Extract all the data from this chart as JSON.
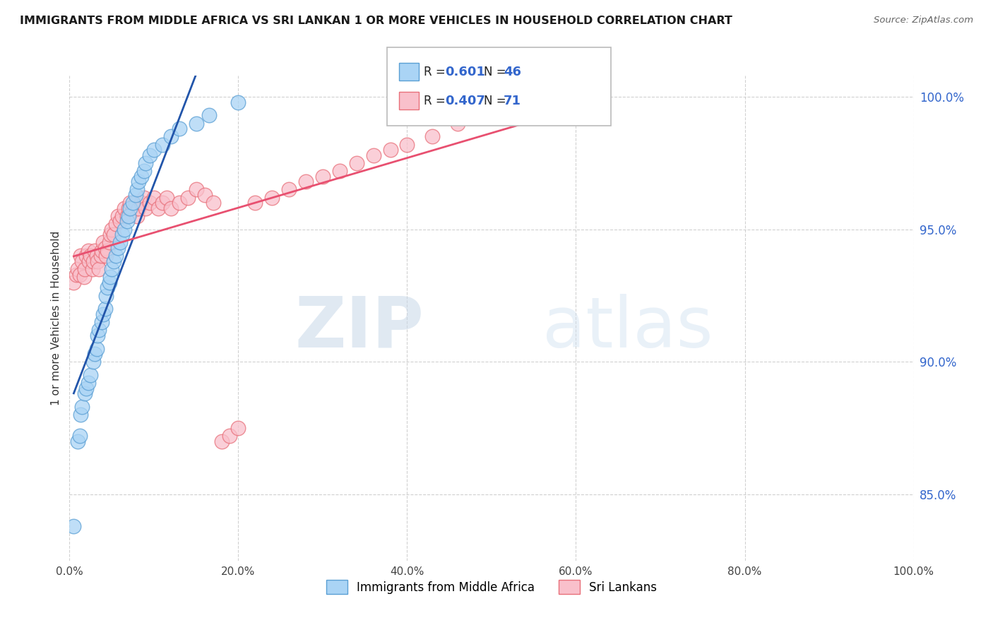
{
  "title": "IMMIGRANTS FROM MIDDLE AFRICA VS SRI LANKAN 1 OR MORE VEHICLES IN HOUSEHOLD CORRELATION CHART",
  "source": "Source: ZipAtlas.com",
  "ylabel": "1 or more Vehicles in Household",
  "watermark_zip": "ZIP",
  "watermark_atlas": "atlas",
  "xlim": [
    0.0,
    1.0
  ],
  "ylim": [
    0.825,
    1.008
  ],
  "yticks": [
    0.85,
    0.9,
    0.95,
    1.0
  ],
  "ytick_labels": [
    "85.0%",
    "90.0%",
    "95.0%",
    "100.0%"
  ],
  "xticks": [
    0.0,
    0.2,
    0.4,
    0.6,
    0.8,
    1.0
  ],
  "xtick_labels": [
    "0.0%",
    "20.0%",
    "40.0%",
    "60.0%",
    "80.0%",
    "100.0%"
  ],
  "blue_R": 0.601,
  "blue_N": 46,
  "pink_R": 0.407,
  "pink_N": 71,
  "blue_color": "#aad4f5",
  "pink_color": "#f9c0cb",
  "blue_edge_color": "#5a9fd4",
  "pink_edge_color": "#e8707a",
  "blue_line_color": "#2255aa",
  "pink_line_color": "#e85070",
  "legend_label_blue": "Immigrants from Middle Africa",
  "legend_label_pink": "Sri Lankans",
  "blue_scatter_x": [
    0.005,
    0.01,
    0.012,
    0.013,
    0.015,
    0.018,
    0.02,
    0.022,
    0.025,
    0.028,
    0.03,
    0.032,
    0.033,
    0.035,
    0.038,
    0.04,
    0.042,
    0.043,
    0.045,
    0.047,
    0.048,
    0.05,
    0.052,
    0.055,
    0.057,
    0.06,
    0.062,
    0.065,
    0.068,
    0.07,
    0.072,
    0.075,
    0.078,
    0.08,
    0.082,
    0.085,
    0.088,
    0.09,
    0.095,
    0.1,
    0.11,
    0.12,
    0.13,
    0.15,
    0.165,
    0.2
  ],
  "blue_scatter_y": [
    0.838,
    0.87,
    0.872,
    0.88,
    0.883,
    0.888,
    0.89,
    0.892,
    0.895,
    0.9,
    0.903,
    0.905,
    0.91,
    0.912,
    0.915,
    0.918,
    0.92,
    0.925,
    0.928,
    0.93,
    0.932,
    0.935,
    0.938,
    0.94,
    0.943,
    0.945,
    0.948,
    0.95,
    0.953,
    0.955,
    0.958,
    0.96,
    0.963,
    0.965,
    0.968,
    0.97,
    0.972,
    0.975,
    0.978,
    0.98,
    0.982,
    0.985,
    0.988,
    0.99,
    0.993,
    0.998
  ],
  "pink_scatter_x": [
    0.005,
    0.008,
    0.01,
    0.012,
    0.013,
    0.015,
    0.017,
    0.018,
    0.02,
    0.022,
    0.023,
    0.025,
    0.027,
    0.028,
    0.03,
    0.032,
    0.033,
    0.035,
    0.037,
    0.038,
    0.04,
    0.042,
    0.043,
    0.045,
    0.047,
    0.048,
    0.05,
    0.052,
    0.055,
    0.057,
    0.06,
    0.062,
    0.065,
    0.068,
    0.07,
    0.072,
    0.075,
    0.078,
    0.08,
    0.082,
    0.085,
    0.088,
    0.09,
    0.095,
    0.1,
    0.105,
    0.11,
    0.115,
    0.12,
    0.13,
    0.14,
    0.15,
    0.16,
    0.17,
    0.18,
    0.19,
    0.2,
    0.22,
    0.24,
    0.26,
    0.28,
    0.3,
    0.32,
    0.34,
    0.36,
    0.38,
    0.4,
    0.43,
    0.46,
    0.5,
    0.55
  ],
  "pink_scatter_y": [
    0.93,
    0.933,
    0.935,
    0.933,
    0.94,
    0.938,
    0.932,
    0.935,
    0.94,
    0.942,
    0.938,
    0.94,
    0.935,
    0.938,
    0.942,
    0.94,
    0.938,
    0.935,
    0.94,
    0.942,
    0.945,
    0.943,
    0.94,
    0.942,
    0.945,
    0.948,
    0.95,
    0.948,
    0.952,
    0.955,
    0.953,
    0.955,
    0.958,
    0.955,
    0.958,
    0.96,
    0.957,
    0.96,
    0.955,
    0.958,
    0.96,
    0.962,
    0.958,
    0.96,
    0.962,
    0.958,
    0.96,
    0.962,
    0.958,
    0.96,
    0.962,
    0.965,
    0.963,
    0.96,
    0.87,
    0.872,
    0.875,
    0.96,
    0.962,
    0.965,
    0.968,
    0.97,
    0.972,
    0.975,
    0.978,
    0.98,
    0.982,
    0.985,
    0.99,
    0.995,
    1.0
  ]
}
